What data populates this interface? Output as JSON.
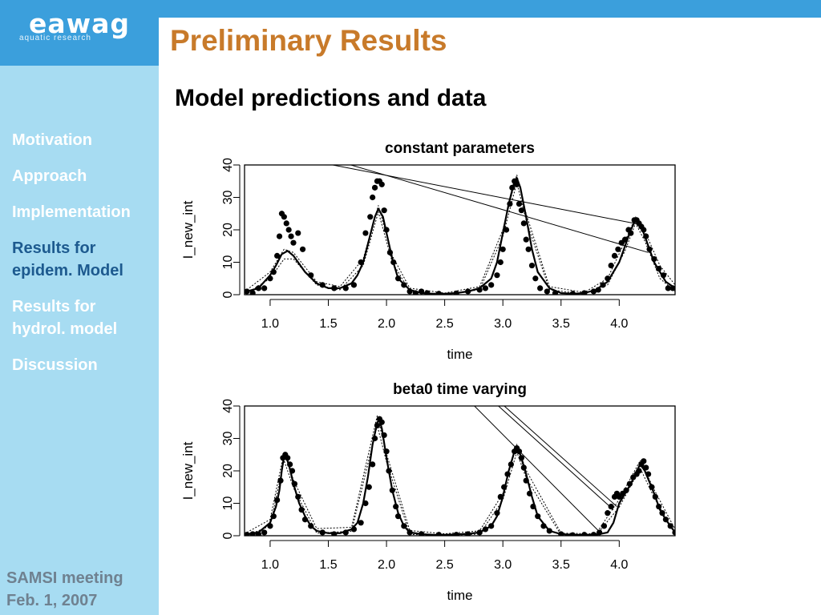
{
  "logo": {
    "name": "eawag",
    "tagline": "aquatic research"
  },
  "slide": {
    "title": "Preliminary Results",
    "subtitle": "Model predictions and data"
  },
  "nav": [
    {
      "label": "Motivation",
      "active": false
    },
    {
      "label": "Approach",
      "active": false
    },
    {
      "label": "Implementation",
      "active": false
    },
    {
      "label": "Results for epidem. Model",
      "active": true
    },
    {
      "label": "Results for hydrol. model",
      "active": false
    },
    {
      "label": "Discussion",
      "active": false
    }
  ],
  "footer": {
    "line1": "SAMSI meeting",
    "line2": "Feb. 1, 2007"
  },
  "colors": {
    "header_blue": "#3b9fdc",
    "sidebar": "#a7dcf2",
    "title": "#c87a2a",
    "active_nav": "#1d5a8f",
    "footer_text": "#6f8190"
  },
  "chart_data": [
    {
      "type": "line",
      "title": "constant parameters",
      "xlabel": "time",
      "ylabel": "I_new_int",
      "xlim": [
        0.78,
        4.48
      ],
      "ylim": [
        0,
        40
      ],
      "xticks": [
        "1.0",
        "1.5",
        "2.0",
        "2.5",
        "3.0",
        "3.5",
        "4.0"
      ],
      "yticks": [
        "0",
        "10",
        "20",
        "30",
        "40"
      ],
      "series": [
        {
          "role": "model",
          "x": [
            0.8,
            0.9,
            1.0,
            1.05,
            1.1,
            1.15,
            1.2,
            1.3,
            1.4,
            1.5,
            1.6,
            1.7,
            1.75,
            1.8,
            1.85,
            1.9,
            1.93,
            1.97,
            2.0,
            2.05,
            2.1,
            2.2,
            2.3,
            2.4,
            2.5,
            2.6,
            2.7,
            2.8,
            2.9,
            2.95,
            3.0,
            3.05,
            3.1,
            3.12,
            3.15,
            3.2,
            3.25,
            3.3,
            3.4,
            3.5,
            3.6,
            3.7,
            3.8,
            3.9,
            4.0,
            4.05,
            4.1,
            4.14,
            4.18,
            4.22,
            4.3,
            4.4,
            4.48
          ],
          "y": [
            1,
            2,
            6,
            9,
            12.5,
            13.5,
            12,
            7,
            3.5,
            2,
            2,
            3.5,
            6,
            10,
            17,
            24,
            26.5,
            24,
            19,
            11,
            5,
            1.5,
            0.5,
            0.3,
            0.3,
            0.5,
            1,
            2,
            5,
            10,
            19,
            28,
            35,
            36,
            33,
            24,
            14,
            7,
            2,
            0.5,
            0.3,
            0.5,
            1.5,
            4,
            10,
            15,
            20,
            23,
            22,
            18,
            10,
            4,
            2
          ]
        },
        {
          "role": "model-upper",
          "x": [
            0.8,
            1.0,
            1.12,
            1.2,
            1.4,
            1.6,
            1.8,
            1.93,
            2.05,
            2.2,
            2.5,
            2.8,
            3.0,
            3.12,
            3.2,
            3.4,
            3.7,
            3.9,
            4.05,
            4.14,
            4.22,
            4.35,
            4.48
          ],
          "y": [
            1.5,
            7,
            14,
            13,
            4,
            2.5,
            11,
            27.5,
            12,
            2,
            0.5,
            2.5,
            20,
            37,
            25,
            2.5,
            0.7,
            5,
            16.5,
            24,
            19.5,
            9,
            3
          ]
        },
        {
          "role": "model-lower",
          "x": [
            0.8,
            1.0,
            1.12,
            1.2,
            1.4,
            1.6,
            1.8,
            1.93,
            2.05,
            2.2,
            2.5,
            2.8,
            3.0,
            3.12,
            3.2,
            3.4,
            3.7,
            3.9,
            4.05,
            4.14,
            4.22,
            4.35,
            4.48
          ],
          "y": [
            0.5,
            5,
            11,
            11,
            3,
            1.5,
            9,
            25.5,
            10,
            1,
            0.1,
            1.5,
            18,
            34.5,
            23,
            1.5,
            0.2,
            3,
            13.5,
            22,
            16.5,
            5,
            1
          ]
        },
        {
          "role": "artifact",
          "x": [
            1.25,
            4.2
          ],
          "y": [
            42,
            21.5
          ]
        },
        {
          "role": "artifact",
          "x": [
            1.6,
            4.25
          ],
          "y": [
            41,
            13
          ]
        },
        {
          "role": "data",
          "x": [
            0.8,
            0.85,
            0.9,
            0.95,
            1.0,
            1.03,
            1.06,
            1.08,
            1.1,
            1.12,
            1.14,
            1.16,
            1.18,
            1.2,
            1.24,
            1.28,
            1.35,
            1.45,
            1.55,
            1.65,
            1.72,
            1.78,
            1.82,
            1.86,
            1.88,
            1.9,
            1.92,
            1.94,
            1.96,
            1.98,
            2.0,
            2.03,
            2.06,
            2.1,
            2.15,
            2.2,
            2.25,
            2.3,
            2.35,
            2.45,
            2.6,
            2.7,
            2.8,
            2.85,
            2.9,
            2.95,
            2.98,
            3.0,
            3.03,
            3.06,
            3.08,
            3.1,
            3.12,
            3.14,
            3.16,
            3.18,
            3.2,
            3.22,
            3.25,
            3.28,
            3.32,
            3.38,
            3.45,
            3.6,
            3.7,
            3.78,
            3.82,
            3.86,
            3.9,
            3.93,
            3.96,
            3.99,
            4.02,
            4.05,
            4.08,
            4.1,
            4.13,
            4.15,
            4.17,
            4.19,
            4.21,
            4.23,
            4.26,
            4.3,
            4.34,
            4.38,
            4.42,
            4.46
          ],
          "y": [
            1,
            0.5,
            2,
            2,
            5,
            7,
            12,
            18,
            25,
            24,
            22,
            20,
            18,
            16,
            19,
            14,
            6,
            3,
            2,
            2,
            3,
            10,
            19,
            24,
            30,
            33,
            35,
            35,
            34,
            26,
            20,
            13,
            10,
            5,
            3,
            1,
            0.5,
            1,
            0.5,
            0.3,
            0.4,
            1,
            1.5,
            2,
            3,
            6,
            10,
            14,
            20,
            28,
            33,
            35,
            34,
            28,
            26,
            22,
            17,
            14,
            9,
            5,
            2,
            1,
            0.5,
            0.3,
            0.5,
            1,
            1.5,
            3,
            5,
            9,
            12,
            14,
            16,
            17,
            20,
            19,
            23,
            23,
            22,
            21,
            20,
            18,
            14,
            11,
            8,
            6,
            2,
            2
          ]
        }
      ]
    },
    {
      "type": "line",
      "title": "beta0 time varying",
      "xlabel": "time",
      "ylabel": "I_new_int",
      "xlim": [
        0.78,
        4.48
      ],
      "ylim": [
        0,
        40
      ],
      "xticks": [
        "1.0",
        "1.5",
        "2.0",
        "2.5",
        "3.0",
        "3.5",
        "4.0"
      ],
      "yticks": [
        "0",
        "10",
        "20",
        "30",
        "40"
      ],
      "series": [
        {
          "role": "model",
          "x": [
            0.8,
            0.9,
            1.0,
            1.05,
            1.08,
            1.1,
            1.12,
            1.14,
            1.16,
            1.2,
            1.25,
            1.3,
            1.35,
            1.4,
            1.5,
            1.6,
            1.7,
            1.75,
            1.8,
            1.84,
            1.88,
            1.92,
            1.94,
            1.96,
            2.0,
            2.05,
            2.1,
            2.15,
            2.2,
            2.3,
            2.4,
            2.5,
            2.6,
            2.7,
            2.8,
            2.9,
            2.95,
            3.0,
            3.05,
            3.1,
            3.12,
            3.15,
            3.2,
            3.25,
            3.3,
            3.4,
            3.5,
            3.6,
            3.7,
            3.8,
            3.9,
            3.95,
            4.0,
            4.05,
            4.1,
            4.15,
            4.18,
            4.22,
            4.3,
            4.35,
            4.4,
            4.48
          ],
          "y": [
            0.5,
            1,
            4,
            9,
            14,
            20,
            24.5,
            24,
            22,
            16,
            10,
            6,
            3,
            1.5,
            0.8,
            0.8,
            2,
            4,
            10,
            18,
            28,
            35,
            35.5,
            33,
            24,
            14,
            7,
            3,
            1,
            0.5,
            0.3,
            0.3,
            0.4,
            0.6,
            1,
            3,
            6,
            12,
            20,
            26,
            27,
            25,
            19,
            12,
            6,
            1.5,
            0.5,
            0.3,
            0.3,
            0.3,
            1,
            4,
            10,
            13,
            16,
            20,
            22,
            20,
            13,
            8,
            5,
            1
          ]
        },
        {
          "role": "model-upper",
          "x": [
            0.8,
            1.0,
            1.12,
            1.2,
            1.4,
            1.7,
            1.92,
            2.0,
            2.2,
            2.5,
            2.8,
            3.0,
            3.12,
            3.2,
            3.5,
            3.8,
            4.0,
            4.18,
            4.3,
            4.48
          ],
          "y": [
            1,
            5,
            25.8,
            17.2,
            2.2,
            2.6,
            37,
            25.2,
            1.6,
            0.6,
            1.5,
            13,
            28.2,
            20.2,
            0.8,
            0.6,
            11.2,
            23.2,
            14.2,
            2
          ]
        },
        {
          "role": "model-lower",
          "x": [
            0.8,
            1.0,
            1.12,
            1.2,
            1.4,
            1.7,
            1.92,
            2.0,
            2.2,
            2.5,
            2.8,
            3.0,
            3.12,
            3.2,
            3.5,
            3.8,
            4.0,
            4.18,
            4.3,
            4.48
          ],
          "y": [
            0.1,
            3,
            23.2,
            14.8,
            0.8,
            1.4,
            34,
            22.8,
            0.4,
            0.1,
            0.5,
            11,
            25.8,
            17.8,
            0.2,
            0.1,
            8.8,
            20.8,
            11.8,
            0.4
          ]
        },
        {
          "role": "artifact",
          "x": [
            2.7,
            3.85
          ],
          "y": [
            42,
            0.5
          ]
        },
        {
          "role": "artifact",
          "x": [
            2.9,
            3.95
          ],
          "y": [
            42,
            8
          ]
        },
        {
          "role": "artifact",
          "x": [
            2.95,
            3.98
          ],
          "y": [
            42,
            9
          ]
        },
        {
          "role": "data",
          "x": [
            0.8,
            0.85,
            0.9,
            0.95,
            1.0,
            1.03,
            1.06,
            1.09,
            1.11,
            1.13,
            1.15,
            1.17,
            1.19,
            1.21,
            1.24,
            1.27,
            1.3,
            1.35,
            1.45,
            1.55,
            1.65,
            1.72,
            1.78,
            1.82,
            1.85,
            1.88,
            1.9,
            1.92,
            1.94,
            1.96,
            1.98,
            2.0,
            2.02,
            2.05,
            2.08,
            2.1,
            2.15,
            2.2,
            2.3,
            2.45,
            2.6,
            2.7,
            2.8,
            2.85,
            2.9,
            2.95,
            2.98,
            3.01,
            3.04,
            3.07,
            3.1,
            3.12,
            3.14,
            3.16,
            3.18,
            3.2,
            3.23,
            3.26,
            3.3,
            3.35,
            3.4,
            3.5,
            3.6,
            3.7,
            3.78,
            3.83,
            3.87,
            3.9,
            3.93,
            3.96,
            3.98,
            4.0,
            4.03,
            4.06,
            4.09,
            4.12,
            4.15,
            4.17,
            4.19,
            4.21,
            4.23,
            4.25,
            4.28,
            4.31,
            4.34,
            4.37,
            4.4,
            4.44,
            4.48
          ],
          "y": [
            0.3,
            0.5,
            0.5,
            1,
            3,
            6,
            11,
            17,
            24,
            25,
            24,
            22,
            20,
            16,
            12,
            8,
            5,
            3,
            1,
            0.5,
            1,
            2,
            4,
            10,
            15,
            22,
            30,
            34,
            36,
            35,
            31,
            26,
            20,
            14,
            9,
            6,
            3,
            1,
            0.5,
            0.3,
            0.3,
            0.5,
            1,
            2,
            3,
            7,
            12,
            15,
            19,
            22,
            26,
            27,
            26,
            24,
            21,
            17,
            13,
            9,
            6,
            3,
            1.5,
            0.5,
            0.2,
            0.3,
            0.3,
            1,
            3,
            7,
            9,
            12,
            13,
            12,
            13,
            14,
            16,
            18,
            19,
            20,
            22,
            23,
            21,
            19,
            15,
            12,
            9,
            7,
            5,
            3,
            1
          ]
        }
      ]
    }
  ]
}
